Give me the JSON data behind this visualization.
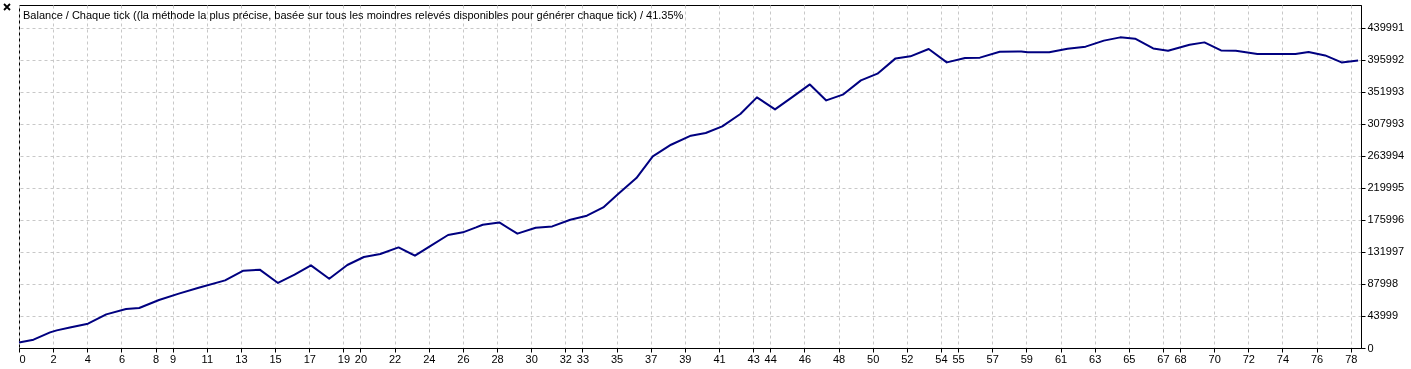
{
  "chart_data": {
    "type": "line",
    "title": "Balance / Chaque tick ((la méthode la plus précise, basée sur tous les moindres relevés disponibles pour générer chaque tick) / 41.35%",
    "color": "#000080",
    "grid": true,
    "x": [
      0,
      0.85,
      1.82,
      2.21,
      2.98,
      4.04,
      5.11,
      6.27,
      7.04,
      8.2,
      9.36,
      10.52,
      12.07,
      13.14,
      14.1,
      15.17,
      16.14,
      17.1,
      18.17,
      19.23,
      20.2,
      21.16,
      22.23,
      23.19,
      24.06,
      25.13,
      26,
      26.77,
      27.16,
      28.13,
      29.19,
      30.26,
      31.23,
      32.29,
      33.26,
      34.22,
      35.09,
      36.16,
      37.12,
      38.19,
      39.35,
      40.22,
      41.19,
      42.25,
      43.22,
      44.28,
      45.35,
      46.32,
      47.28,
      48.25,
      49.31,
      50.28,
      51.34,
      52.21,
      53.28,
      54.34,
      55.41,
      56.28,
      57.44,
      58.7,
      59.08,
      60.34,
      61.41,
      62.47,
      63.54,
      64.5,
      65.37,
      66.43,
      67.3,
      68.56,
      69.43,
      70.4,
      71.27,
      72.53,
      74.76,
      75.53,
      76.5,
      77.46,
      78.43
    ],
    "values": [
      7700,
      11400,
      21500,
      24200,
      28300,
      33400,
      46200,
      53600,
      55000,
      66000,
      74700,
      82900,
      93000,
      106300,
      107700,
      89400,
      100800,
      113600,
      95300,
      114100,
      125100,
      129300,
      138300,
      126900,
      139700,
      155400,
      159000,
      165800,
      169500,
      172700,
      157200,
      165400,
      167200,
      176400,
      181900,
      193300,
      211700,
      233700,
      263500,
      279500,
      291900,
      295600,
      304700,
      321700,
      344600,
      328100,
      345900,
      362400,
      340400,
      348300,
      368000,
      377200,
      398200,
      401000,
      411100,
      392700,
      398800,
      399200,
      407400,
      407800,
      406500,
      406500,
      411500,
      414300,
      422600,
      427100,
      425300,
      411900,
      408800,
      417000,
      420200,
      409200,
      408800,
      404300,
      404300,
      407000,
      402300,
      392700,
      395400
    ],
    "xlim": [
      0,
      78.6
    ],
    "xticks": [
      0,
      2,
      4,
      6,
      8,
      9,
      11,
      13,
      15,
      17,
      19,
      20,
      22,
      24,
      26,
      28,
      30,
      32,
      33,
      35,
      37,
      39,
      41,
      43,
      44,
      46,
      48,
      50,
      52,
      54,
      55,
      57,
      59,
      61,
      63,
      65,
      67,
      68,
      70,
      72,
      74,
      76,
      78
    ],
    "ylim": [
      0,
      471600
    ],
    "yticks": [
      0,
      43999,
      87998,
      131997,
      175996,
      219995,
      263994,
      307993,
      351993,
      395992,
      439991
    ]
  }
}
